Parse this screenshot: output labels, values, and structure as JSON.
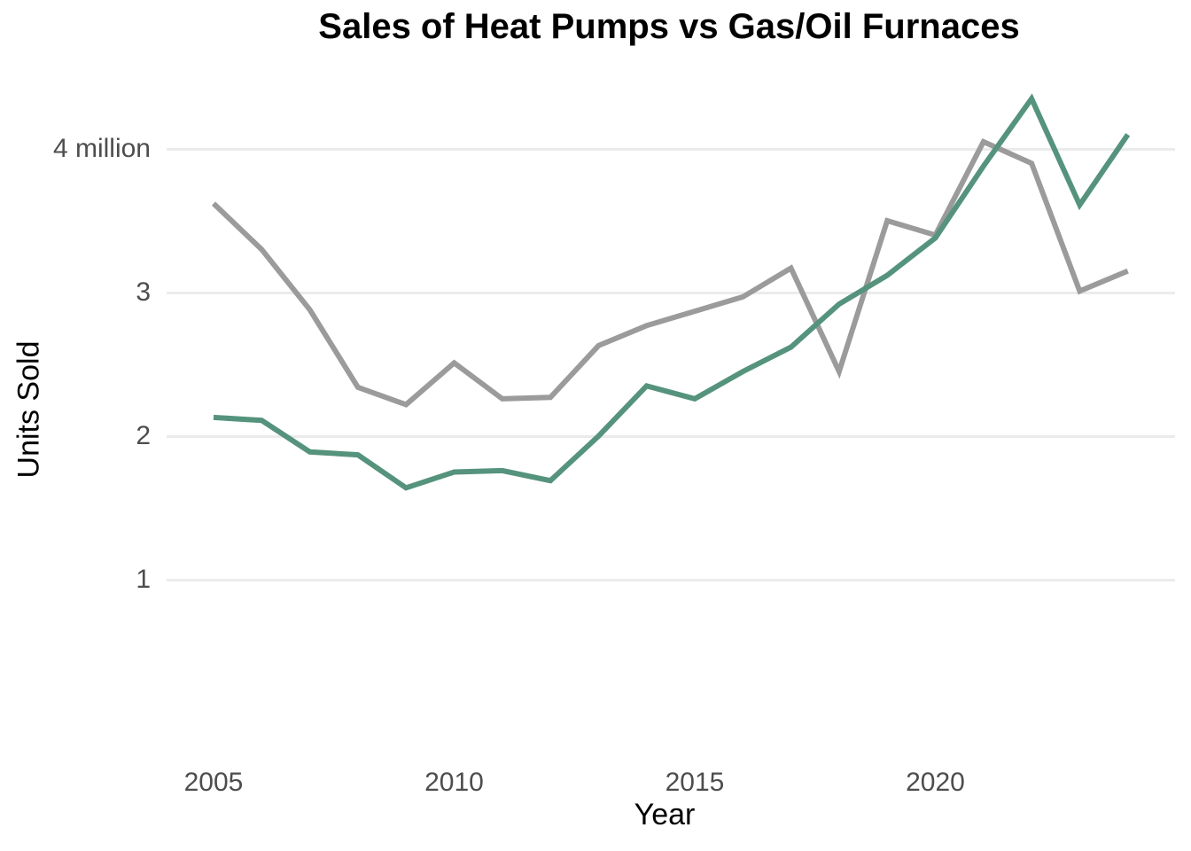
{
  "page": {
    "background_color": "#ffffff",
    "tick_label_color": "#4d4d4d",
    "gridline_color": "#ebebeb",
    "title_color": "#000000"
  },
  "chart_data": {
    "type": "line",
    "title": "Sales of Heat Pumps vs Gas/Oil Furnaces",
    "xlabel": "Year",
    "ylabel": "Units Sold",
    "units": "millions",
    "grid": "horizontal-only",
    "legend_position": "none",
    "xlim": [
      2004,
      2025
    ],
    "ylim": [
      -0.2,
      4.6
    ],
    "x": [
      2005,
      2006,
      2007,
      2008,
      2009,
      2010,
      2011,
      2012,
      2013,
      2014,
      2015,
      2016,
      2017,
      2018,
      2019,
      2020,
      2021,
      2022,
      2023,
      2024
    ],
    "series": [
      {
        "name": "Gas/Oil Furnaces",
        "color": "#9B9B9B",
        "values": [
          3.62,
          3.3,
          2.88,
          2.34,
          2.22,
          2.51,
          2.26,
          2.27,
          2.63,
          2.77,
          2.87,
          2.97,
          3.17,
          2.45,
          3.5,
          3.4,
          4.05,
          3.9,
          3.01,
          3.15
        ]
      },
      {
        "name": "Heat Pumps",
        "color": "#55937D",
        "values": [
          2.13,
          2.11,
          1.89,
          1.87,
          1.64,
          1.75,
          1.76,
          1.69,
          2.0,
          2.35,
          2.26,
          2.45,
          2.62,
          2.92,
          3.12,
          3.38,
          3.88,
          4.35,
          3.61,
          4.1
        ]
      }
    ],
    "x_ticks": [
      {
        "label": "2005",
        "value": 2005
      },
      {
        "label": "2010",
        "value": 2010
      },
      {
        "label": "2015",
        "value": 2015
      },
      {
        "label": "2020",
        "value": 2020
      }
    ],
    "y_ticks": [
      {
        "label": "4 million",
        "value": 4
      },
      {
        "label": "3",
        "value": 3
      },
      {
        "label": "2",
        "value": 2
      },
      {
        "label": "1",
        "value": 1
      }
    ]
  }
}
